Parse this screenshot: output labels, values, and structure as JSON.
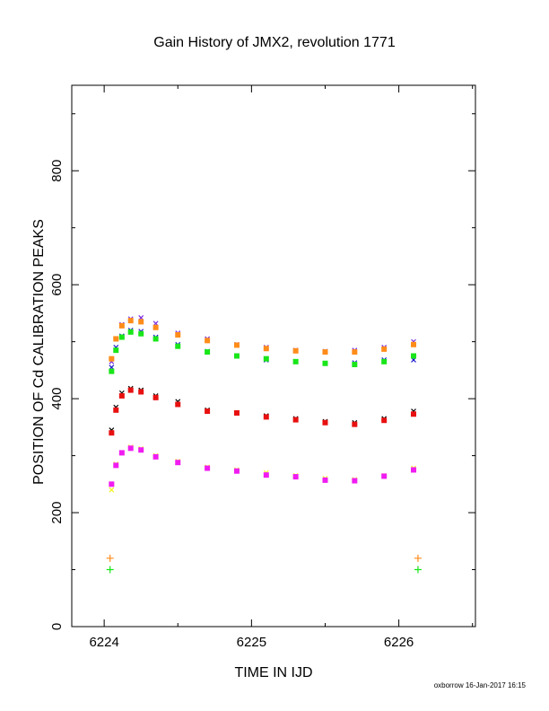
{
  "chart_data": {
    "type": "scatter",
    "title": "Gain History of JMX2, revolution 1771",
    "xlabel": "TIME IN IJD",
    "ylabel": "POSITION OF Cd CALIBRATION PEAKS",
    "xlim": [
      6223.78,
      6226.52
    ],
    "ylim": [
      0,
      950
    ],
    "x_ticks": [
      6224,
      6225,
      6226
    ],
    "y_ticks": [
      0,
      200,
      400,
      600,
      800
    ],
    "grid": false,
    "footer": "oxborrow 16-Jan-2017 16:15",
    "series": [
      {
        "marker": "x",
        "color": "#7a2be2",
        "x": [
          6224.05,
          6224.08,
          6224.12,
          6224.18,
          6224.25,
          6224.35,
          6224.5,
          6224.7,
          6224.9,
          6225.1,
          6225.3,
          6225.5,
          6225.7,
          6225.9,
          6226.1
        ],
        "y": [
          465,
          505,
          530,
          540,
          542,
          532,
          515,
          505,
          495,
          490,
          485,
          483,
          485,
          490,
          500
        ]
      },
      {
        "marker": "x",
        "color": "#1b1bcc",
        "x": [
          6224.05,
          6224.08,
          6224.12,
          6224.18,
          6224.25,
          6224.35,
          6224.5,
          6224.7,
          6224.9,
          6225.1,
          6225.3,
          6225.5,
          6225.7,
          6225.9,
          6226.1
        ],
        "y": [
          455,
          490,
          510,
          520,
          518,
          508,
          495,
          483,
          475,
          468,
          465,
          462,
          463,
          468,
          468
        ]
      },
      {
        "marker": "square",
        "color": "#ff8c1a",
        "x": [
          6224.05,
          6224.08,
          6224.12,
          6224.18,
          6224.25,
          6224.35,
          6224.5,
          6224.7,
          6224.9,
          6225.1,
          6225.3,
          6225.5,
          6225.7,
          6225.9,
          6226.1
        ],
        "y": [
          470,
          505,
          528,
          537,
          535,
          525,
          512,
          502,
          494,
          488,
          484,
          482,
          482,
          487,
          495
        ]
      },
      {
        "marker": "square",
        "color": "#19e619",
        "x": [
          6224.05,
          6224.08,
          6224.12,
          6224.18,
          6224.25,
          6224.35,
          6224.5,
          6224.7,
          6224.9,
          6225.1,
          6225.3,
          6225.5,
          6225.7,
          6225.9,
          6226.1
        ],
        "y": [
          448,
          485,
          508,
          517,
          514,
          505,
          492,
          482,
          475,
          470,
          465,
          462,
          460,
          465,
          475
        ]
      },
      {
        "marker": "x",
        "color": "#000000",
        "x": [
          6224.05,
          6224.08,
          6224.12,
          6224.18,
          6224.25,
          6224.35,
          6224.5,
          6224.7,
          6224.9,
          6225.1,
          6225.3,
          6225.5,
          6225.7,
          6225.9,
          6226.1
        ],
        "y": [
          345,
          385,
          410,
          418,
          415,
          405,
          395,
          380,
          375,
          370,
          365,
          360,
          358,
          365,
          378
        ]
      },
      {
        "marker": "square",
        "color": "#e81010",
        "x": [
          6224.05,
          6224.08,
          6224.12,
          6224.18,
          6224.25,
          6224.35,
          6224.5,
          6224.7,
          6224.9,
          6225.1,
          6225.3,
          6225.5,
          6225.7,
          6225.9,
          6226.1
        ],
        "y": [
          340,
          380,
          405,
          415,
          412,
          402,
          390,
          378,
          375,
          368,
          363,
          358,
          355,
          362,
          373
        ]
      },
      {
        "marker": "x",
        "color": "#f2f219",
        "x": [
          6224.05,
          6224.08,
          6224.12,
          6224.18,
          6224.25,
          6224.35,
          6224.5,
          6224.7,
          6224.9,
          6225.1,
          6225.3,
          6225.5,
          6225.7,
          6225.9,
          6226.1
        ],
        "y": [
          240,
          285,
          305,
          315,
          312,
          300,
          290,
          280,
          275,
          270,
          265,
          260,
          258,
          265,
          278
        ]
      },
      {
        "marker": "square",
        "color": "#f01cf0",
        "x": [
          6224.05,
          6224.08,
          6224.12,
          6224.18,
          6224.25,
          6224.35,
          6224.5,
          6224.7,
          6224.9,
          6225.1,
          6225.3,
          6225.5,
          6225.7,
          6225.9,
          6226.1
        ],
        "y": [
          250,
          283,
          305,
          313,
          310,
          298,
          288,
          278,
          273,
          266,
          263,
          257,
          256,
          264,
          275
        ]
      },
      {
        "marker": "plus",
        "color": "#ff8c1a",
        "x": [
          6224.04,
          6226.13
        ],
        "y": [
          120,
          120
        ]
      },
      {
        "marker": "plus",
        "color": "#19e619",
        "x": [
          6224.04,
          6226.13
        ],
        "y": [
          100,
          100
        ]
      }
    ]
  }
}
